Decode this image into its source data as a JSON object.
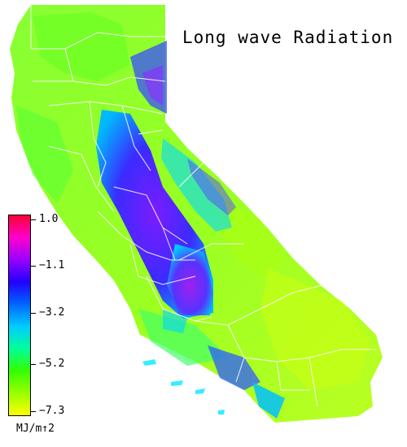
{
  "title": "Long wave Radiation",
  "legend": {
    "unit": "MJ/m↑2",
    "ticks": [
      {
        "label": "1.0",
        "value": 1.0
      },
      {
        "label": "−1.1",
        "value": -1.1
      },
      {
        "label": "−3.2",
        "value": -3.2
      },
      {
        "label": "−5.2",
        "value": -5.2
      },
      {
        "label": "−7.3",
        "value": -7.3
      }
    ],
    "range": [
      -7.3,
      1.0
    ],
    "colors_top_to_bottom": [
      "#ff0033",
      "#ff00cc",
      "#9900ff",
      "#2200ff",
      "#0066ff",
      "#00ccff",
      "#00ff99",
      "#33ff00",
      "#99ff00",
      "#ffff00"
    ]
  },
  "map": {
    "region": "California",
    "background_color": "#99ff33",
    "low_value_color": "#4433ff",
    "mid_value_color": "#00ccff",
    "boundary_color": "#ffffff"
  }
}
